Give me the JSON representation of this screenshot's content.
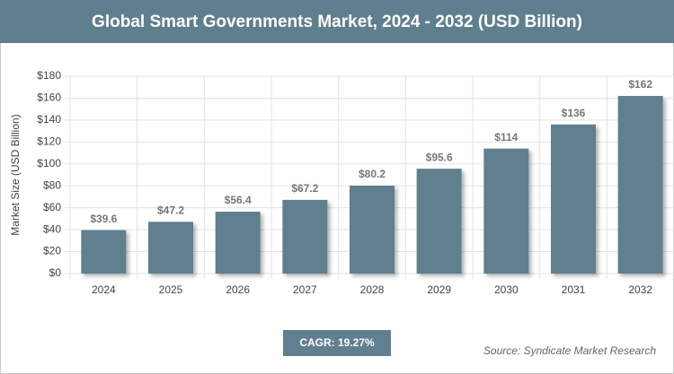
{
  "chart_data": {
    "type": "bar",
    "title": "Global Smart Governments Market, 2024 - 2032 (USD Billion)",
    "y_label": "Market Size (USD Billion)",
    "categories": [
      "2024",
      "2025",
      "2026",
      "2027",
      "2028",
      "2029",
      "2030",
      "2031",
      "2032"
    ],
    "values": [
      39.6,
      47.2,
      56.4,
      67.2,
      80.2,
      95.6,
      114,
      136,
      162
    ],
    "value_labels": [
      "$39.6",
      "$47.2",
      "$56.4",
      "$67.2",
      "$80.2",
      "$95.6",
      "$114",
      "$136",
      "$162"
    ],
    "color": "#617f8f",
    "ylim": [
      0,
      180
    ],
    "yticks": [
      {
        "value": 0,
        "label": "$0"
      },
      {
        "value": 20,
        "label": "$20"
      },
      {
        "value": 40,
        "label": "$40"
      },
      {
        "value": 60,
        "label": "$60"
      },
      {
        "value": 80,
        "label": "$80"
      },
      {
        "value": 100,
        "label": "$100"
      },
      {
        "value": 120,
        "label": "$120"
      },
      {
        "value": 140,
        "label": "$140"
      },
      {
        "value": 160,
        "label": "$160"
      },
      {
        "value": 180,
        "label": "$180"
      }
    ],
    "grid": true,
    "annotations": [
      "CAGR: 19.27%",
      "Source: Syndicate Market Research"
    ]
  }
}
